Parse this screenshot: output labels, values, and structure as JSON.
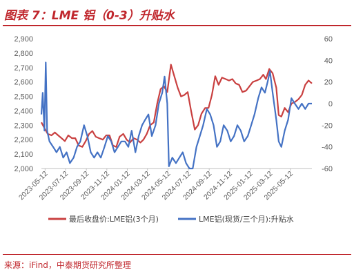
{
  "title": "图表 7：LME 铝（0-3）升贴水",
  "source": "来源：iFind，中泰期货研究所整理",
  "colors": {
    "brand": "#c0272d",
    "series_red": "#c94040",
    "series_blue": "#4472c4",
    "axis_text": "#595959",
    "grid": "#d9d9d9"
  },
  "chart_data": {
    "type": "line",
    "x_tick_labels": [
      "2023-05-12",
      "2023-07-12",
      "2023-09-12",
      "2023-11-12",
      "2024-01-12",
      "2024-03-12",
      "2024-05-12",
      "2024-07-12",
      "2024-09-12",
      "2024-11-12",
      "2025-01-12",
      "2025-03-12",
      "2025-05-12"
    ],
    "x_range": [
      "2023-05-01",
      "2025-07-15"
    ],
    "y_left": {
      "ticks": [
        "2,000",
        "2,100",
        "2,200",
        "2,300",
        "2,400",
        "2,500",
        "2,600",
        "2,700",
        "2,800",
        "2,900"
      ],
      "ylim": [
        2000,
        2900
      ]
    },
    "y_right": {
      "ticks": [
        "-60",
        "-40",
        "-20",
        "0",
        "20",
        "40",
        "60"
      ],
      "ylim": [
        -60,
        60
      ]
    },
    "grid": false,
    "legend_position": "bottom",
    "series": [
      {
        "name": "最后收盘价:LME铝(3个月)",
        "axis": "left",
        "color": "#c94040",
        "points": [
          [
            "2023-05-01",
            2320
          ],
          [
            "2023-05-10",
            2280
          ],
          [
            "2023-05-20",
            2240
          ],
          [
            "2023-05-31",
            2230
          ],
          [
            "2023-06-10",
            2250
          ],
          [
            "2023-06-20",
            2230
          ],
          [
            "2023-06-30",
            2210
          ],
          [
            "2023-07-10",
            2190
          ],
          [
            "2023-07-20",
            2230
          ],
          [
            "2023-07-31",
            2210
          ],
          [
            "2023-08-10",
            2210
          ],
          [
            "2023-08-20",
            2160
          ],
          [
            "2023-08-31",
            2150
          ],
          [
            "2023-09-10",
            2190
          ],
          [
            "2023-09-20",
            2240
          ],
          [
            "2023-09-30",
            2260
          ],
          [
            "2023-10-10",
            2220
          ],
          [
            "2023-10-20",
            2210
          ],
          [
            "2023-10-31",
            2200
          ],
          [
            "2023-11-10",
            2230
          ],
          [
            "2023-11-20",
            2230
          ],
          [
            "2023-11-30",
            2160
          ],
          [
            "2023-12-10",
            2150
          ],
          [
            "2023-12-20",
            2220
          ],
          [
            "2023-12-31",
            2240
          ],
          [
            "2024-01-10",
            2200
          ],
          [
            "2024-01-20",
            2180
          ],
          [
            "2024-01-31",
            2210
          ],
          [
            "2024-02-10",
            2200
          ],
          [
            "2024-02-20",
            2180
          ],
          [
            "2024-02-29",
            2200
          ],
          [
            "2024-03-10",
            2240
          ],
          [
            "2024-03-20",
            2300
          ],
          [
            "2024-03-31",
            2320
          ],
          [
            "2024-04-10",
            2450
          ],
          [
            "2024-04-20",
            2550
          ],
          [
            "2024-04-30",
            2570
          ],
          [
            "2024-05-10",
            2530
          ],
          [
            "2024-05-21",
            2720
          ],
          [
            "2024-05-31",
            2640
          ],
          [
            "2024-06-10",
            2560
          ],
          [
            "2024-06-20",
            2500
          ],
          [
            "2024-06-30",
            2510
          ],
          [
            "2024-07-10",
            2530
          ],
          [
            "2024-07-20",
            2400
          ],
          [
            "2024-07-31",
            2270
          ],
          [
            "2024-08-10",
            2300
          ],
          [
            "2024-08-20",
            2380
          ],
          [
            "2024-08-31",
            2420
          ],
          [
            "2024-09-10",
            2420
          ],
          [
            "2024-09-20",
            2510
          ],
          [
            "2024-09-30",
            2640
          ],
          [
            "2024-10-10",
            2580
          ],
          [
            "2024-10-20",
            2630
          ],
          [
            "2024-10-31",
            2620
          ],
          [
            "2024-11-10",
            2610
          ],
          [
            "2024-11-20",
            2620
          ],
          [
            "2024-11-30",
            2590
          ],
          [
            "2024-12-10",
            2580
          ],
          [
            "2024-12-20",
            2530
          ],
          [
            "2024-12-31",
            2540
          ],
          [
            "2025-01-10",
            2570
          ],
          [
            "2025-01-20",
            2600
          ],
          [
            "2025-01-31",
            2610
          ],
          [
            "2025-02-10",
            2620
          ],
          [
            "2025-02-20",
            2650
          ],
          [
            "2025-02-28",
            2620
          ],
          [
            "2025-03-10",
            2690
          ],
          [
            "2025-03-20",
            2660
          ],
          [
            "2025-03-31",
            2560
          ],
          [
            "2025-04-07",
            2370
          ],
          [
            "2025-04-15",
            2360
          ],
          [
            "2025-04-25",
            2420
          ],
          [
            "2025-05-05",
            2390
          ],
          [
            "2025-05-15",
            2450
          ],
          [
            "2025-05-25",
            2460
          ],
          [
            "2025-06-05",
            2480
          ],
          [
            "2025-06-15",
            2510
          ],
          [
            "2025-06-25",
            2580
          ],
          [
            "2025-07-05",
            2610
          ],
          [
            "2025-07-15",
            2590
          ]
        ]
      },
      {
        "name": "LME铝(现货/三个月):升贴水",
        "axis": "right",
        "color": "#4472c4",
        "points": [
          [
            "2023-05-01",
            -10
          ],
          [
            "2023-05-05",
            10
          ],
          [
            "2023-05-10",
            -25
          ],
          [
            "2023-05-14",
            38
          ],
          [
            "2023-05-18",
            -25
          ],
          [
            "2023-05-25",
            -35
          ],
          [
            "2023-06-05",
            -40
          ],
          [
            "2023-06-15",
            -45
          ],
          [
            "2023-06-25",
            -40
          ],
          [
            "2023-07-05",
            -50
          ],
          [
            "2023-07-15",
            -45
          ],
          [
            "2023-07-25",
            -55
          ],
          [
            "2023-08-05",
            -50
          ],
          [
            "2023-08-15",
            -40
          ],
          [
            "2023-08-25",
            -35
          ],
          [
            "2023-09-05",
            -20
          ],
          [
            "2023-09-15",
            -30
          ],
          [
            "2023-09-25",
            -45
          ],
          [
            "2023-10-05",
            -50
          ],
          [
            "2023-10-15",
            -45
          ],
          [
            "2023-10-25",
            -50
          ],
          [
            "2023-11-05",
            -40
          ],
          [
            "2023-11-15",
            -30
          ],
          [
            "2023-11-25",
            -35
          ],
          [
            "2023-12-05",
            -45
          ],
          [
            "2023-12-15",
            -40
          ],
          [
            "2023-12-25",
            -35
          ],
          [
            "2024-01-05",
            -35
          ],
          [
            "2024-01-15",
            -40
          ],
          [
            "2024-01-25",
            -25
          ],
          [
            "2024-02-05",
            -45
          ],
          [
            "2024-02-15",
            -30
          ],
          [
            "2024-02-25",
            -20
          ],
          [
            "2024-03-05",
            -15
          ],
          [
            "2024-03-15",
            -10
          ],
          [
            "2024-03-25",
            -30
          ],
          [
            "2024-04-05",
            -20
          ],
          [
            "2024-04-15",
            0
          ],
          [
            "2024-04-25",
            10
          ],
          [
            "2024-05-02",
            25
          ],
          [
            "2024-05-10",
            0
          ],
          [
            "2024-05-15",
            -58
          ],
          [
            "2024-05-25",
            -50
          ],
          [
            "2024-06-05",
            -55
          ],
          [
            "2024-06-15",
            -50
          ],
          [
            "2024-06-25",
            -45
          ],
          [
            "2024-07-05",
            -55
          ],
          [
            "2024-07-15",
            -60
          ],
          [
            "2024-07-25",
            -60
          ],
          [
            "2024-08-05",
            -40
          ],
          [
            "2024-08-15",
            -30
          ],
          [
            "2024-08-25",
            -20
          ],
          [
            "2024-09-05",
            -5
          ],
          [
            "2024-09-15",
            -10
          ],
          [
            "2024-09-25",
            -20
          ],
          [
            "2024-10-05",
            -40
          ],
          [
            "2024-10-15",
            -35
          ],
          [
            "2024-10-25",
            -20
          ],
          [
            "2024-11-05",
            -25
          ],
          [
            "2024-11-15",
            -35
          ],
          [
            "2024-11-25",
            -30
          ],
          [
            "2024-12-05",
            -20
          ],
          [
            "2024-12-15",
            -25
          ],
          [
            "2024-12-25",
            -35
          ],
          [
            "2025-01-05",
            -30
          ],
          [
            "2025-01-15",
            -20
          ],
          [
            "2025-01-25",
            -10
          ],
          [
            "2025-02-05",
            5
          ],
          [
            "2025-02-15",
            15
          ],
          [
            "2025-02-25",
            10
          ],
          [
            "2025-03-05",
            20
          ],
          [
            "2025-03-12",
            30
          ],
          [
            "2025-03-20",
            10
          ],
          [
            "2025-03-31",
            -15
          ],
          [
            "2025-04-07",
            -35
          ],
          [
            "2025-04-15",
            -40
          ],
          [
            "2025-04-25",
            -25
          ],
          [
            "2025-05-05",
            -15
          ],
          [
            "2025-05-15",
            5
          ],
          [
            "2025-05-25",
            0
          ],
          [
            "2025-06-05",
            -5
          ],
          [
            "2025-06-15",
            0
          ],
          [
            "2025-06-25",
            -5
          ],
          [
            "2025-07-05",
            0
          ],
          [
            "2025-07-15",
            0
          ]
        ]
      }
    ]
  }
}
